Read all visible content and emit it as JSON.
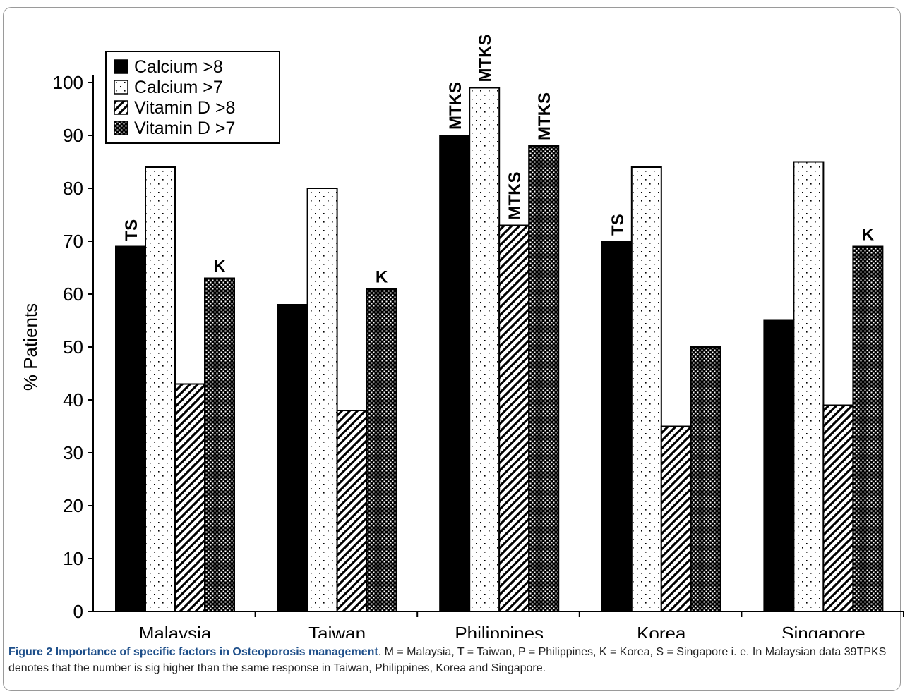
{
  "chart_data": {
    "type": "bar",
    "ylabel": "% Patients",
    "xlabel": "",
    "ylim": [
      0,
      100
    ],
    "yticks": [
      0,
      10,
      20,
      30,
      40,
      50,
      60,
      70,
      80,
      90,
      100
    ],
    "categories": [
      "Malaysia",
      "Taiwan",
      "Philippines",
      "Korea",
      "Singapore"
    ],
    "series": [
      {
        "name": "Calcium >8",
        "pattern": "solid",
        "values": [
          69,
          58,
          90,
          70,
          55
        ],
        "annotations": [
          "TS",
          "",
          "MTKS",
          "TS",
          ""
        ]
      },
      {
        "name": "Calcium >7",
        "pattern": "dots",
        "values": [
          84,
          80,
          99,
          84,
          85
        ],
        "annotations": [
          "",
          "",
          "MTKS",
          "",
          ""
        ]
      },
      {
        "name": "Vitamin D >8",
        "pattern": "diagonal",
        "values": [
          43,
          38,
          73,
          35,
          39
        ],
        "annotations": [
          "",
          "",
          "MTKS",
          "",
          ""
        ]
      },
      {
        "name": "Vitamin D >7",
        "pattern": "checker",
        "values": [
          63,
          61,
          88,
          50,
          69
        ],
        "annotations": [
          "K",
          "K",
          "MTKS",
          "",
          "K"
        ]
      }
    ],
    "legend_position": "top-left",
    "grid": false
  },
  "caption": {
    "title": "Figure 2 Importance of specific factors in Osteoporosis management",
    "body": ". M = Malaysia, T = Taiwan, P = Philippines, K = Korea, S = Singapore i. e. In Malaysian data 39TPKS denotes that the number is sig higher than the same response in Taiwan, Philippines, Korea and Singapore."
  }
}
